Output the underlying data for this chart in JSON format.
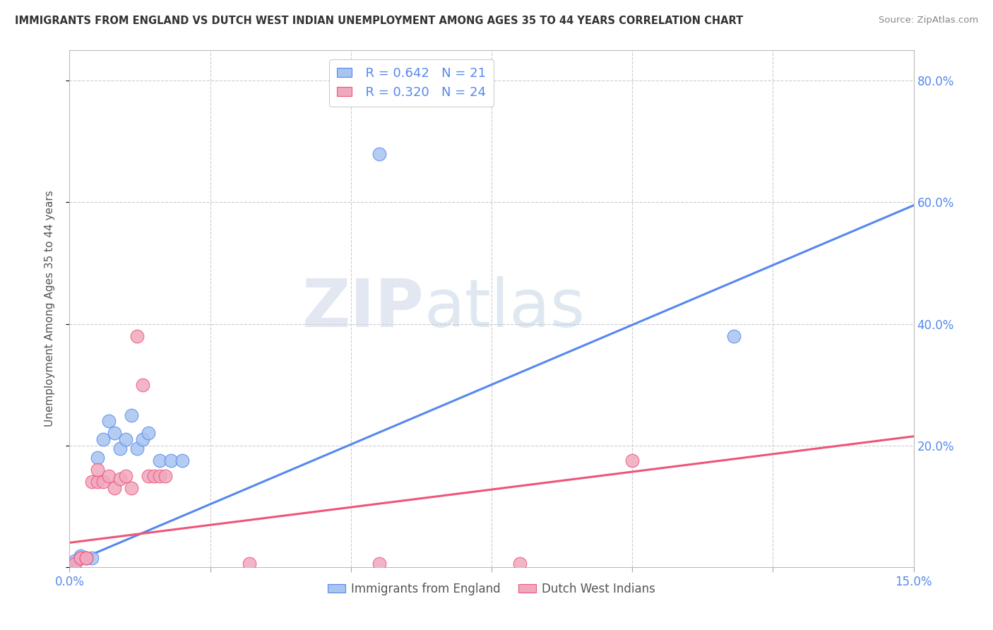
{
  "title": "IMMIGRANTS FROM ENGLAND VS DUTCH WEST INDIAN UNEMPLOYMENT AMONG AGES 35 TO 44 YEARS CORRELATION CHART",
  "source": "Source: ZipAtlas.com",
  "ylabel": "Unemployment Among Ages 35 to 44 years",
  "xlim": [
    0.0,
    0.15
  ],
  "ylim": [
    0.0,
    0.85
  ],
  "xticks": [
    0.0,
    0.025,
    0.05,
    0.075,
    0.1,
    0.125,
    0.15
  ],
  "xticklabels": [
    "0.0%",
    "",
    "",
    "",
    "",
    "",
    "15.0%"
  ],
  "ytick_positions": [
    0.0,
    0.2,
    0.4,
    0.6,
    0.8
  ],
  "ytick_labels": [
    "",
    "20.0%",
    "40.0%",
    "60.0%",
    "80.0%"
  ],
  "legend_r_blue": "R = 0.642",
  "legend_n_blue": "N = 21",
  "legend_r_pink": "R = 0.320",
  "legend_n_pink": "N = 24",
  "series_blue": {
    "x": [
      0.001,
      0.001,
      0.002,
      0.002,
      0.003,
      0.004,
      0.005,
      0.006,
      0.007,
      0.008,
      0.009,
      0.01,
      0.011,
      0.012,
      0.013,
      0.014,
      0.016,
      0.018,
      0.02,
      0.055,
      0.118
    ],
    "y": [
      0.005,
      0.01,
      0.015,
      0.018,
      0.015,
      0.015,
      0.18,
      0.21,
      0.24,
      0.22,
      0.195,
      0.21,
      0.25,
      0.195,
      0.21,
      0.22,
      0.175,
      0.175,
      0.175,
      0.68,
      0.38
    ]
  },
  "series_pink": {
    "x": [
      0.001,
      0.002,
      0.002,
      0.003,
      0.003,
      0.004,
      0.005,
      0.005,
      0.006,
      0.007,
      0.008,
      0.009,
      0.01,
      0.011,
      0.012,
      0.013,
      0.014,
      0.015,
      0.016,
      0.017,
      0.032,
      0.055,
      0.08,
      0.1
    ],
    "y": [
      0.005,
      0.015,
      0.015,
      0.015,
      0.015,
      0.14,
      0.14,
      0.16,
      0.14,
      0.15,
      0.13,
      0.145,
      0.15,
      0.13,
      0.38,
      0.3,
      0.15,
      0.15,
      0.15,
      0.15,
      0.005,
      0.005,
      0.005,
      0.175
    ]
  },
  "trendline_blue": {
    "x": [
      0.0,
      0.15
    ],
    "y": [
      0.005,
      0.595
    ]
  },
  "trendline_pink": {
    "x": [
      0.0,
      0.15
    ],
    "y": [
      0.04,
      0.215
    ]
  },
  "color_blue": "#a8c4f0",
  "color_pink": "#f0a8bf",
  "trendline_blue_color": "#5588ee",
  "trendline_pink_color": "#ee5577",
  "watermark_zip": "ZIP",
  "watermark_atlas": "atlas",
  "background_color": "#ffffff",
  "grid_color": "#cccccc"
}
